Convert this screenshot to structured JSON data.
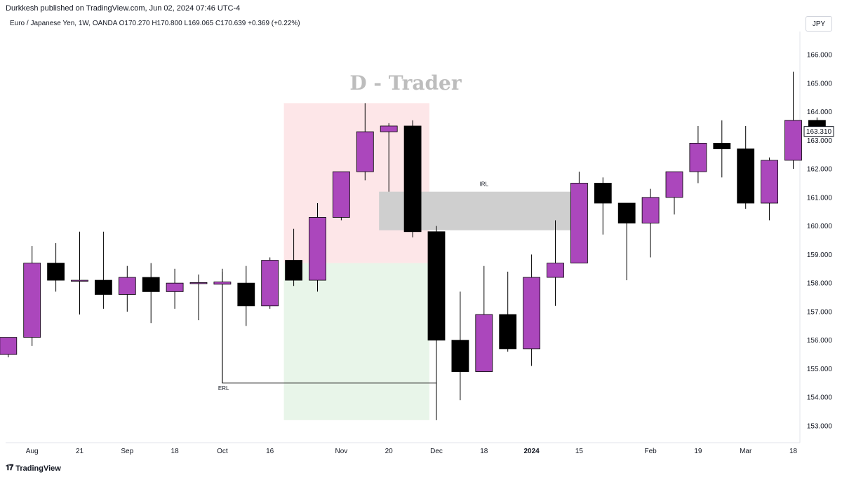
{
  "header": {
    "publisher": "Durkkesh published on TradingView.com, Jun 02, 2024 07:46 UTC-4"
  },
  "legend": {
    "text": "Euro / Japanese Yen, 1W, OANDA  O170.270  H170.800  L169.065  C170.639  +0.369 (+0.22%)"
  },
  "currency_button": "JPY",
  "watermark": "D - Trader",
  "footer": {
    "brand": "TradingView",
    "logo": "tradingview-logo-icon"
  },
  "colors": {
    "bull": "#ab47bc",
    "bear": "#000000",
    "bullish_zone": "#e8f5e9",
    "bearish_zone": "#fde6e8",
    "irl_zone": "#cfcfcf",
    "grid_text": "#131722"
  },
  "chart_data": {
    "type": "candlestick",
    "title": "",
    "y_unit": "JPY",
    "ylim": [
      152.7,
      166.7
    ],
    "y_ticks": [
      153.0,
      154.0,
      155.0,
      156.0,
      157.0,
      158.0,
      159.0,
      160.0,
      161.0,
      162.0,
      163.0,
      164.0,
      165.0,
      166.0
    ],
    "x_tick_labels": [
      {
        "label": "Aug",
        "index": 1
      },
      {
        "label": "21",
        "index": 3
      },
      {
        "label": "Sep",
        "index": 5
      },
      {
        "label": "18",
        "index": 7
      },
      {
        "label": "Oct",
        "index": 9
      },
      {
        "label": "16",
        "index": 11
      },
      {
        "label": "Nov",
        "index": 14
      },
      {
        "label": "20",
        "index": 16
      },
      {
        "label": "Dec",
        "index": 18
      },
      {
        "label": "18",
        "index": 20
      },
      {
        "label": "2024",
        "index": 22,
        "bold": true
      },
      {
        "label": "15",
        "index": 24
      },
      {
        "label": "Feb",
        "index": 27
      },
      {
        "label": "19",
        "index": 29
      },
      {
        "label": "Mar",
        "index": 31
      },
      {
        "label": "18",
        "index": 33
      }
    ],
    "candles": [
      {
        "o": 155.5,
        "h": 156.1,
        "l": 155.4,
        "c": 156.1
      },
      {
        "o": 156.1,
        "h": 159.3,
        "l": 155.8,
        "c": 158.7
      },
      {
        "o": 158.7,
        "h": 159.4,
        "l": 157.7,
        "c": 158.1
      },
      {
        "o": 158.1,
        "h": 159.8,
        "l": 156.9,
        "c": 158.1
      },
      {
        "o": 158.1,
        "h": 159.8,
        "l": 157.1,
        "c": 157.6
      },
      {
        "o": 157.6,
        "h": 158.6,
        "l": 157.0,
        "c": 158.2
      },
      {
        "o": 158.2,
        "h": 158.7,
        "l": 156.6,
        "c": 157.7
      },
      {
        "o": 157.7,
        "h": 158.5,
        "l": 157.1,
        "c": 158.0
      },
      {
        "o": 157.98,
        "h": 158.3,
        "l": 156.7,
        "c": 158.02
      },
      {
        "o": 157.96,
        "h": 158.5,
        "l": 154.5,
        "c": 158.04
      },
      {
        "o": 158.0,
        "h": 158.6,
        "l": 156.5,
        "c": 157.2
      },
      {
        "o": 157.2,
        "h": 158.9,
        "l": 157.1,
        "c": 158.8
      },
      {
        "o": 158.8,
        "h": 159.9,
        "l": 157.9,
        "c": 158.1
      },
      {
        "o": 158.1,
        "h": 160.8,
        "l": 157.7,
        "c": 160.3
      },
      {
        "o": 160.3,
        "h": 161.9,
        "l": 160.2,
        "c": 161.9
      },
      {
        "o": 161.9,
        "h": 164.3,
        "l": 161.6,
        "c": 163.3
      },
      {
        "o": 163.3,
        "h": 163.6,
        "l": 161.2,
        "c": 163.5
      },
      {
        "o": 163.5,
        "h": 163.7,
        "l": 159.6,
        "c": 159.8
      },
      {
        "o": 159.8,
        "h": 160.0,
        "l": 153.2,
        "c": 156.0
      },
      {
        "o": 156.0,
        "h": 157.7,
        "l": 153.9,
        "c": 154.9
      },
      {
        "o": 154.9,
        "h": 158.6,
        "l": 154.9,
        "c": 156.9
      },
      {
        "o": 156.9,
        "h": 158.4,
        "l": 155.6,
        "c": 155.7
      },
      {
        "o": 155.7,
        "h": 159.0,
        "l": 155.1,
        "c": 158.2
      },
      {
        "o": 158.2,
        "h": 160.2,
        "l": 157.2,
        "c": 158.7
      },
      {
        "o": 158.7,
        "h": 161.9,
        "l": 158.7,
        "c": 161.5
      },
      {
        "o": 161.5,
        "h": 161.7,
        "l": 159.7,
        "c": 160.8
      },
      {
        "o": 160.8,
        "h": 160.8,
        "l": 158.1,
        "c": 160.1
      },
      {
        "o": 160.1,
        "h": 161.3,
        "l": 158.9,
        "c": 161.0
      },
      {
        "o": 161.0,
        "h": 161.9,
        "l": 160.4,
        "c": 161.9
      },
      {
        "o": 161.9,
        "h": 163.5,
        "l": 161.5,
        "c": 162.9
      },
      {
        "o": 162.9,
        "h": 163.7,
        "l": 161.7,
        "c": 162.7
      },
      {
        "o": 162.7,
        "h": 163.5,
        "l": 160.6,
        "c": 160.8
      },
      {
        "o": 160.8,
        "h": 162.4,
        "l": 160.2,
        "c": 162.3
      },
      {
        "o": 162.3,
        "h": 165.4,
        "l": 162.0,
        "c": 163.7
      },
      {
        "o": 163.7,
        "h": 163.8,
        "l": 163.3,
        "c": 163.31
      }
    ],
    "last_price": 163.31,
    "last_price_label": "163.310",
    "zones": [
      {
        "name": "bearish-zone",
        "from_index": 12,
        "to_index": 18,
        "y1": 158.7,
        "y2": 164.3
      },
      {
        "name": "bullish-zone",
        "from_index": 12,
        "to_index": 18,
        "y1": 153.2,
        "y2": 158.7
      },
      {
        "name": "irl-zone",
        "from_index": 16,
        "to_index": 24,
        "y1": 159.85,
        "y2": 161.2
      }
    ],
    "annotations": [
      {
        "text": "IRL",
        "index": 20,
        "y": 161.3
      },
      {
        "text": "ERL",
        "index": 9,
        "y": 154.5
      }
    ],
    "erl_line": {
      "from_index": 9,
      "to_index": 18,
      "y": 154.5,
      "drop_to": 158.4
    }
  }
}
